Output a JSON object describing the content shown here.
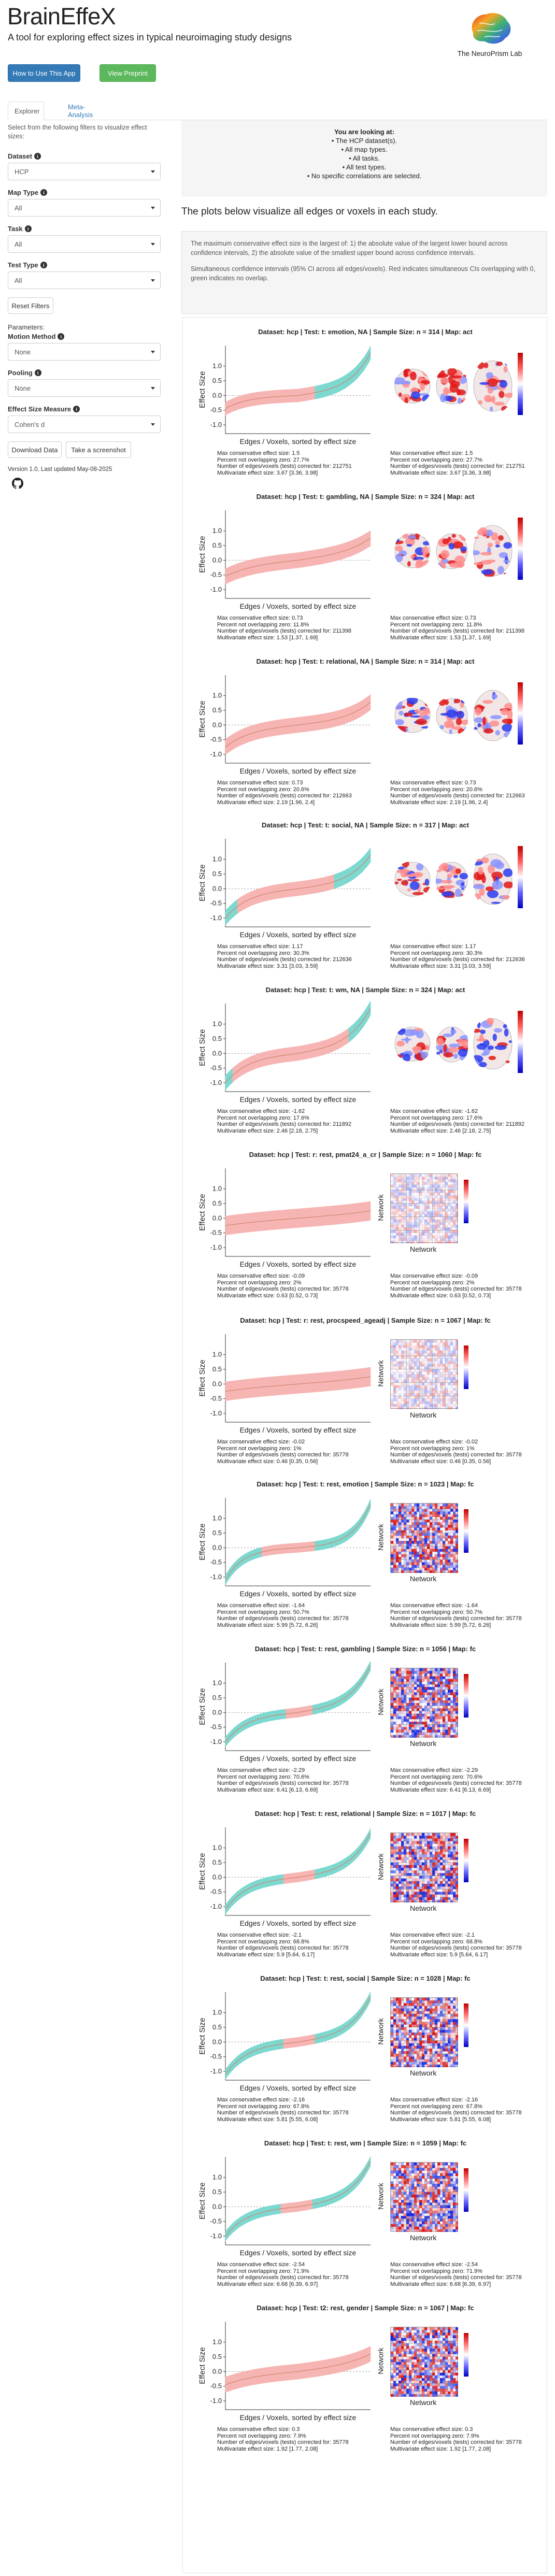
{
  "header": {
    "app_title": "BrainEffeX",
    "subtitle": "A tool for exploring effect sizes in typical neuroimaging study designs",
    "lab_name": "The NeuroPrism Lab"
  },
  "buttons": {
    "how_to": "How to Use This App",
    "preprint": "View Preprint"
  },
  "tabs": [
    "Explorer",
    "Meta-Analysis"
  ],
  "sidebar": {
    "intro": "Select from the following filters to visualize effect sizes:",
    "dataset_label": "Dataset",
    "dataset_value": "HCP",
    "map_type_label": "Map Type",
    "map_type_value": "All",
    "task_label": "Task",
    "task_value": "All",
    "test_type_label": "Test Type",
    "test_type_value": "All",
    "reset_label": "Reset Filters",
    "parameters_label": "Parameters:",
    "motion_label": "Motion Method",
    "motion_value": "None",
    "pooling_label": "Pooling",
    "pooling_value": "None",
    "esm_label": "Effect Size Measure",
    "esm_value": "Cohen's d",
    "download_label": "Download Data",
    "screenshot_label": "Take a screenshot",
    "version": "Version 1.0, Last updated May-08-2025"
  },
  "looking_at": {
    "title": "You are looking at:",
    "lines": [
      "• The HCP dataset(s).",
      "• All map types.",
      "• All tasks.",
      "• All test types.",
      "• No specific correlations are selected."
    ]
  },
  "plots_note": "The plots below visualize all edges or voxels in each study.",
  "description": {
    "p1": "The maximum conservative effect size is the largest of: 1) the absolute value of the largest lower bound across confidence intervals, 2) the absolute value of the smallest upper bound across confidence intervals.",
    "p2": "Simultaneous confidence intervals (95% CI across all edges/voxels). Red indicates simultaneous CIs overlapping with 0, green indicates no overlap."
  },
  "axis_text": {
    "ylabel": "Effect Size",
    "xlabel": "Edges / Voxels, sorted by effect size",
    "net": "Network",
    "yticks": [
      "1.0",
      "0.5",
      "0.0",
      "-0.5",
      "-1.0"
    ]
  },
  "colors": {
    "green_band": "#7dd8cf",
    "red_band": "#f6b5b2",
    "line": "#d4836f",
    "blue_btn": "#337ab7",
    "green_btn": "#5cb85c"
  },
  "panels": [
    {
      "title": "Dataset: hcp   |   Test: t: emotion, NA   |   Sample Size: n = 314   |   Map: act",
      "map": "act",
      "shape": "emo",
      "stats": [
        "Max conservative effect size: 1.5",
        "Percent not overlapping zero: 27.7%",
        "Number of edges/voxels (tests) corrected for: 212751",
        "Multivariate effect size: 3.67 [3.36, 3.98]"
      ]
    },
    {
      "title": "Dataset: hcp   |   Test: t: gambling, NA   |   Sample Size: n = 324   |   Map: act",
      "map": "act",
      "shape": "gamb",
      "stats": [
        "Max conservative effect size: 0.73",
        "Percent not overlapping zero: 11.8%",
        "Number of edges/voxels (tests) corrected for: 211398",
        "Multivariate effect size: 1.53 [1.37, 1.69]"
      ]
    },
    {
      "title": "Dataset: hcp   |   Test: t: relational, NA   |   Sample Size: n = 314   |   Map: act",
      "map": "act",
      "shape": "rel",
      "stats": [
        "Max conservative effect size: 0.73",
        "Percent not overlapping zero: 20.6%",
        "Number of edges/voxels (tests) corrected for: 212663",
        "Multivariate effect size: 2.19 [1.96, 2.4]"
      ]
    },
    {
      "title": "Dataset: hcp   |   Test: t: social, NA   |   Sample Size: n = 317   |   Map: act",
      "map": "act",
      "shape": "soc",
      "stats": [
        "Max conservative effect size: 1.17",
        "Percent not overlapping zero: 30.3%",
        "Number of edges/voxels (tests) corrected for: 212636",
        "Multivariate effect size: 3.31 [3.03, 3.59]"
      ]
    },
    {
      "title": "Dataset: hcp   |   Test: t: wm, NA   |   Sample Size: n = 324   |   Map: act",
      "map": "act",
      "shape": "wm",
      "stats": [
        "Max conservative effect size: -1.62",
        "Percent not overlapping zero: 17.6%",
        "Number of edges/voxels (tests) corrected for: 211892",
        "Multivariate effect size: 2.46 [2.18, 2.75]"
      ]
    },
    {
      "title": "Dataset: hcp   |   Test: r: rest, pmat24_a_cr   |   Sample Size: n = 1060   |   Map: fc",
      "map": "fc",
      "shape": "flat",
      "weak": true,
      "stats": [
        "Max conservative effect size: -0.09",
        "Percent not overlapping zero: 2%",
        "Number of edges/voxels (tests) corrected for: 35778",
        "Multivariate effect size: 0.63 [0.52, 0.73]"
      ]
    },
    {
      "title": "Dataset: hcp   |   Test: r: rest, procspeed_ageadj   |   Sample Size: n = 1067   |   Map: fc",
      "map": "fc",
      "shape": "flat",
      "weak": true,
      "stats": [
        "Max conservative effect size: -0.02",
        "Percent not overlapping zero: 1%",
        "Number of edges/voxels (tests) corrected for: 35778",
        "Multivariate effect size: 0.46 [0.35, 0.56]"
      ]
    },
    {
      "title": "Dataset: hcp   |   Test: t: rest, emotion   |   Sample Size: n = 1023   |   Map: fc",
      "map": "fc",
      "shape": "emo2",
      "stats": [
        "Max conservative effect size: -1.64",
        "Percent not overlapping zero: 50.7%",
        "Number of edges/voxels (tests) corrected for: 35778",
        "Multivariate effect size: 5.99 [5.72, 6.26]"
      ]
    },
    {
      "title": "Dataset: hcp   |   Test: t: rest, gambling   |   Sample Size: n = 1056   |   Map: fc",
      "map": "fc",
      "shape": "gamb2",
      "stats": [
        "Max conservative effect size: -2.29",
        "Percent not overlapping zero: 70.6%",
        "Number of edges/voxels (tests) corrected for: 35778",
        "Multivariate effect size: 6.41 [6.13, 6.69]"
      ]
    },
    {
      "title": "Dataset: hcp   |   Test: t: rest, relational   |   Sample Size: n = 1017   |   Map: fc",
      "map": "fc",
      "shape": "rel2",
      "stats": [
        "Max conservative effect size: -2.1",
        "Percent not overlapping zero: 68.8%",
        "Number of edges/voxels (tests) corrected for: 35778",
        "Multivariate effect size: 5.9 [5.64, 6.17]"
      ]
    },
    {
      "title": "Dataset: hcp   |   Test: t: rest, social   |   Sample Size: n = 1028   |   Map: fc",
      "map": "fc",
      "shape": "soc2",
      "stats": [
        "Max conservative effect size: -2.16",
        "Percent not overlapping zero: 67.8%",
        "Number of edges/voxels (tests) corrected for: 35778",
        "Multivariate effect size: 5.81 [5.55, 6.08]"
      ]
    },
    {
      "title": "Dataset: hcp   |   Test: t: rest, wm   |   Sample Size: n = 1059   |   Map: fc",
      "map": "fc",
      "shape": "wm2",
      "stats": [
        "Max conservative effect size: -2.54",
        "Percent not overlapping zero: 71.9%",
        "Number of edges/voxels (tests) corrected for: 35778",
        "Multivariate effect size: 6.68 [6.39, 6.97]"
      ]
    },
    {
      "title": "Dataset: hcp   |   Test: t2: rest, gender   |   Sample Size: n = 1067   |   Map: fc",
      "map": "fc",
      "shape": "gender",
      "stats": [
        "Max conservative effect size: 0.3",
        "Percent not overlapping zero: 7.9%",
        "Number of edges/voxels (tests) corrected for: 35778",
        "Multivariate effect size: 1.92 [1.77, 2.08]"
      ]
    }
  ]
}
